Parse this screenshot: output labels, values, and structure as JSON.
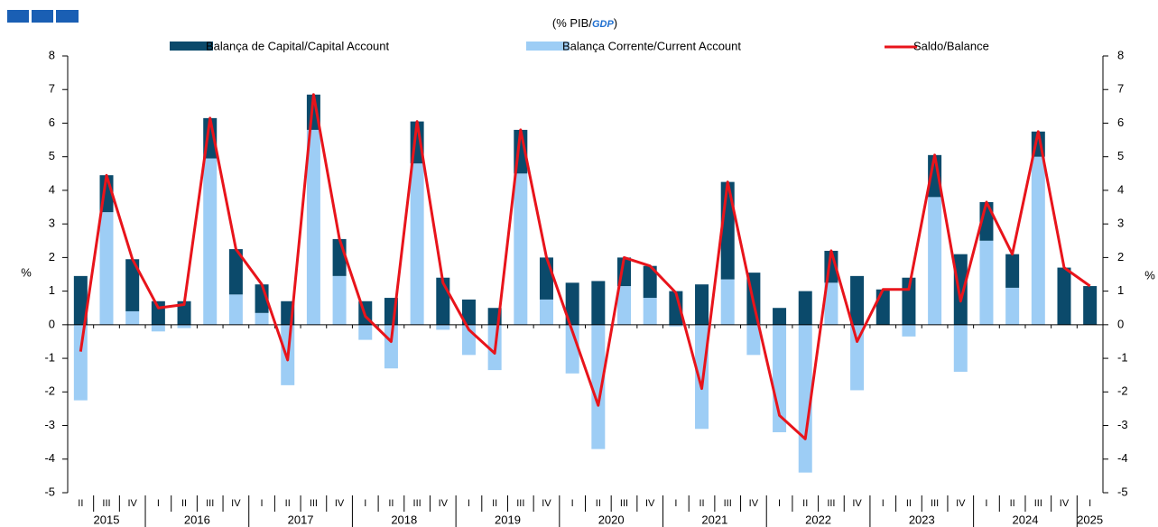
{
  "chart_data": {
    "type": "bar",
    "subtitle": "(% PIB/",
    "subtitle_em": "GDP",
    "subtitle_end": ")",
    "ylabel": "%",
    "y2label": "%",
    "categories": [
      "II",
      "III",
      "IV",
      "I",
      "II",
      "III",
      "IV",
      "I",
      "II",
      "III",
      "IV",
      "I",
      "II",
      "III",
      "IV",
      "I",
      "II",
      "III",
      "IV",
      "I",
      "II",
      "III",
      "IV",
      "I",
      "II",
      "III",
      "IV",
      "I",
      "II",
      "III",
      "IV",
      "I",
      "II",
      "III",
      "IV",
      "I",
      "II",
      "III",
      "IV",
      "I"
    ],
    "years": [
      "2015",
      "2016",
      "2017",
      "2018",
      "2019",
      "2020",
      "2021",
      "2022",
      "2023",
      "2024",
      "2025"
    ],
    "series": [
      {
        "name": "Balança de Capital/Capital Account",
        "type": "bar",
        "color": "#0b4a6b",
        "values": [
          1.45,
          1.1,
          1.55,
          0.7,
          0.7,
          1.2,
          1.35,
          0.85,
          0.7,
          1.05,
          1.1,
          0.7,
          0.8,
          1.25,
          1.4,
          0.75,
          0.5,
          1.3,
          1.25,
          1.25,
          1.3,
          0.85,
          0.95,
          1.0,
          1.2,
          2.9,
          1.55,
          0.5,
          1.0,
          0.95,
          1.45,
          1.05,
          1.4,
          1.25,
          2.1,
          1.15,
          1.0,
          0.75,
          1.7,
          1.15
        ]
      },
      {
        "name": "Balança Corrente/Current Account",
        "type": "bar",
        "color": "#9dcdf5",
        "values": [
          -2.25,
          3.35,
          0.4,
          -0.2,
          -0.1,
          4.95,
          0.9,
          0.35,
          -1.8,
          5.8,
          1.45,
          -0.45,
          -1.3,
          4.8,
          -0.15,
          -0.9,
          -1.35,
          4.5,
          0.75,
          -1.45,
          -3.7,
          1.15,
          0.8,
          -0.05,
          -3.1,
          1.35,
          -0.9,
          -3.2,
          -4.4,
          1.25,
          -1.95,
          0,
          -0.35,
          3.8,
          -1.4,
          2.5,
          1.1,
          5.0,
          0,
          0
        ]
      },
      {
        "name": "Saldo/Balance",
        "type": "line",
        "color": "#e8141b",
        "values": [
          -0.8,
          4.45,
          1.95,
          0.5,
          0.6,
          6.15,
          2.25,
          1.2,
          -1.05,
          6.85,
          2.55,
          0.25,
          -0.5,
          6.05,
          1.25,
          -0.15,
          -0.85,
          5.8,
          2.0,
          -0.2,
          -2.4,
          2.0,
          1.75,
          0.95,
          -1.9,
          4.25,
          0.65,
          -2.7,
          -3.4,
          2.2,
          -0.5,
          1.05,
          1.05,
          5.05,
          0.7,
          3.65,
          2.1,
          5.75,
          1.7,
          1.15
        ]
      }
    ],
    "ylim": [
      -5,
      8
    ],
    "yticks": [
      -5,
      -4,
      -3,
      -2,
      -1,
      0,
      1,
      2,
      3,
      4,
      5,
      6,
      7,
      8
    ],
    "y2lim": [
      -5,
      8
    ],
    "y2ticks": [
      -5,
      -4,
      -3,
      -2,
      -1,
      0,
      1,
      2,
      3,
      4,
      5,
      6,
      7,
      8
    ],
    "legend": "top"
  }
}
